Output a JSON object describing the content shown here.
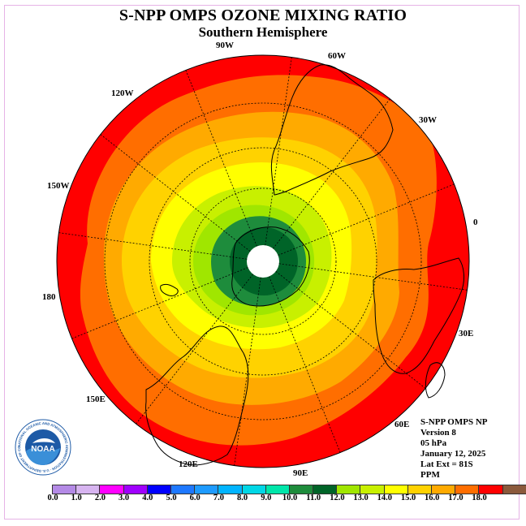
{
  "title": "S-NPP OMPS OZONE MIXING RATIO",
  "subtitle": "Southern Hemisphere",
  "longitude_labels": [
    {
      "text": "90W"
    },
    {
      "text": "60W"
    },
    {
      "text": "30W"
    },
    {
      "text": "0"
    },
    {
      "text": "30E"
    },
    {
      "text": "60E"
    },
    {
      "text": "90E"
    },
    {
      "text": "120E"
    },
    {
      "text": "150E"
    },
    {
      "text": "180"
    },
    {
      "text": "150W"
    },
    {
      "text": "120W"
    }
  ],
  "info": {
    "line1": "S-NPP OMPS NP",
    "line2": "Version 8",
    "line3": "05 hPa",
    "line4": "January 12, 2025",
    "line5": "Lat Ext = 81S",
    "line6": "PPM"
  },
  "logo": {
    "text": "NOAA",
    "ring_text": "NATIONAL OCEANIC AND ATMOSPHERIC ADMINISTRATION · U.S. DEPARTMENT OF COMMERCE"
  },
  "colorbar": {
    "colors": [
      "#b48ae6",
      "#d7b4f0",
      "#ff00ff",
      "#a000ff",
      "#0000ff",
      "#1e78ff",
      "#1e9bff",
      "#00b4ff",
      "#00d7e6",
      "#00e6aa",
      "#1e8c3c",
      "#006428",
      "#a0e600",
      "#c8f000",
      "#ffff00",
      "#ffd200",
      "#ffaa00",
      "#ff6e00",
      "#ff0000",
      "#8b5a3c"
    ],
    "ticks": [
      "0.0",
      "1.0",
      "2.0",
      "3.0",
      "4.0",
      "5.0",
      "6.0",
      "7.0",
      "8.0",
      "9.0",
      "10.0",
      "11.0",
      "12.0",
      "13.0",
      "14.0",
      "15.0",
      "16.0",
      "17.0",
      "18.0"
    ]
  },
  "ozone_bands": [
    {
      "color": "#ff0000"
    },
    {
      "color": "#ff6e00"
    },
    {
      "color": "#ffaa00"
    },
    {
      "color": "#ffd200"
    },
    {
      "color": "#ffff00"
    },
    {
      "color": "#c8f000"
    },
    {
      "color": "#a0e600"
    },
    {
      "color": "#1e8c3c"
    },
    {
      "color": "#006428"
    }
  ]
}
